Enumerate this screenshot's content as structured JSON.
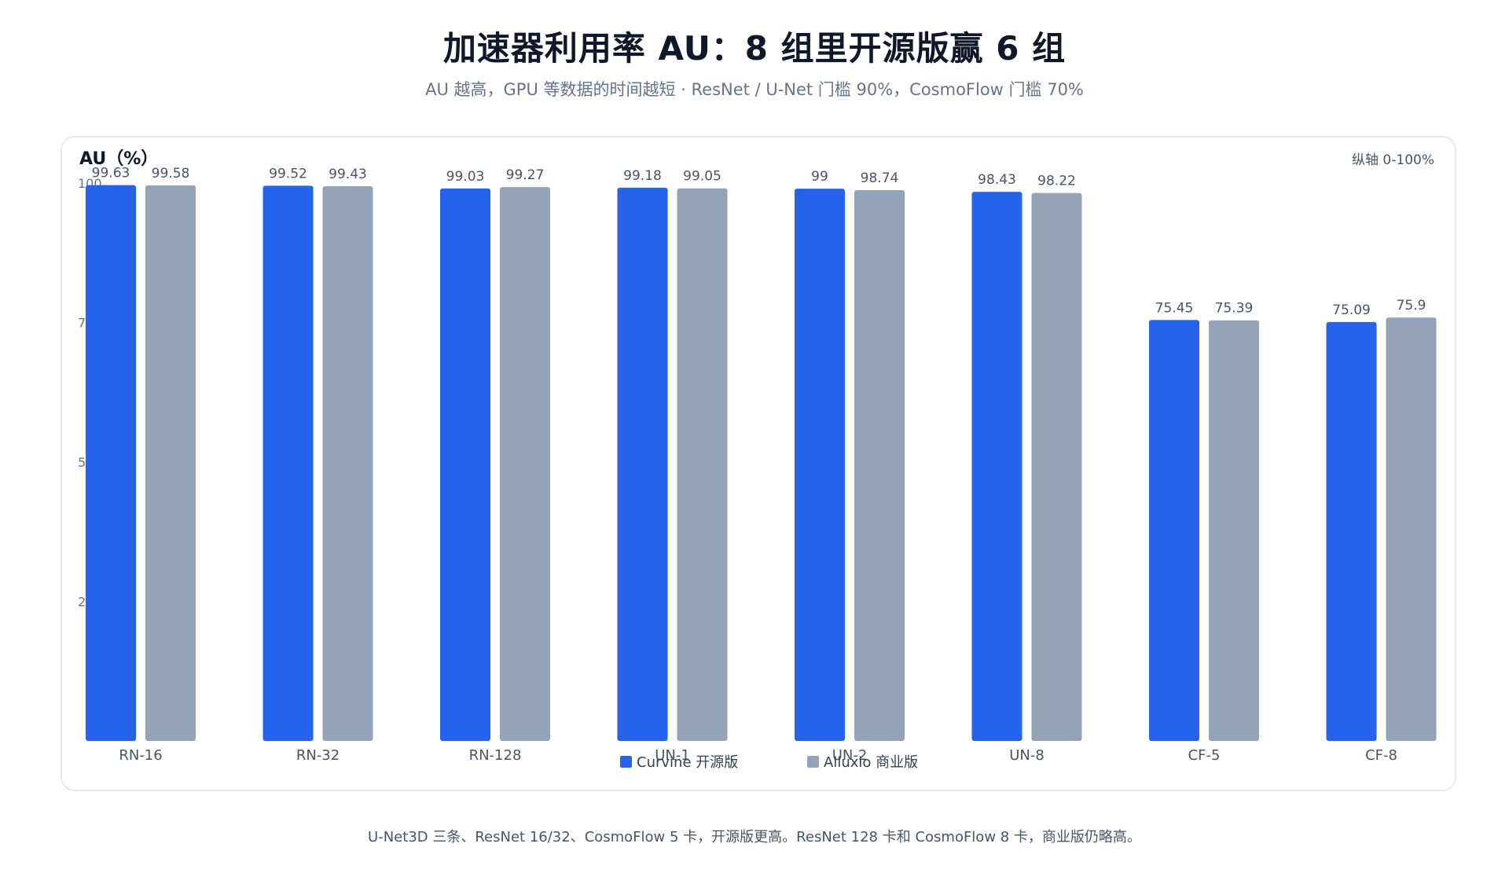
{
  "header": {
    "title": "加速器利用率 AU：8 组里开源版赢 6 组",
    "subtitle": "AU 越高，GPU 等数据的时间越短 · ResNet / U-Net 门槛 90%，CosmoFlow 门槛 70%"
  },
  "footnote": "U-Net3D 三条、ResNet 16/32、CosmoFlow 5 卡，开源版更高。ResNet 128 卡和 CosmoFlow 8 卡，商业版仍略高。",
  "chart_data": {
    "type": "bar",
    "title": "加速器利用率 AU：8 组里开源版赢 6 组",
    "subtitle": "AU 越高，GPU 等数据的时间越短 · ResNet / U-Net 门槛 90%，CosmoFlow 门槛 70%",
    "ylabel": "AU（%）",
    "axis_note": "纵轴 0-100%",
    "ylim": [
      0,
      100
    ],
    "yticks": [
      25,
      50,
      75,
      100
    ],
    "grid": false,
    "legend_position": "bottom-center",
    "categories": [
      "RN-16",
      "RN-32",
      "RN-128",
      "UN-1",
      "UN-2",
      "UN-8",
      "CF-5",
      "CF-8"
    ],
    "series": [
      {
        "name": "Curvine 开源版",
        "color": "#2563eb",
        "values": [
          99.63,
          99.52,
          99.03,
          99.18,
          99,
          98.43,
          75.45,
          75.09
        ]
      },
      {
        "name": "Alluxio 商业版",
        "color": "#94a3b8",
        "values": [
          99.58,
          99.43,
          99.27,
          99.05,
          98.74,
          98.22,
          75.39,
          75.9
        ]
      }
    ]
  }
}
